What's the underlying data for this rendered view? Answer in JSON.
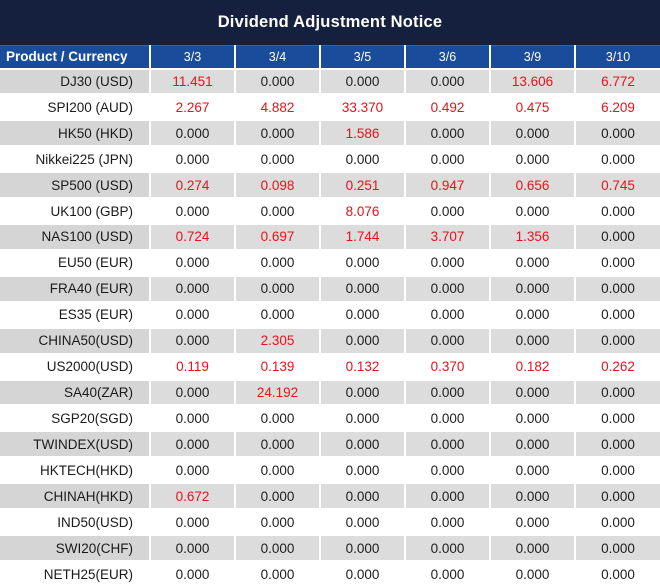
{
  "title": "Dividend Adjustment Notice",
  "table": {
    "product_header": "Product / Currency",
    "date_columns": [
      "3/3",
      "3/4",
      "3/5",
      "3/6",
      "3/9",
      "3/10"
    ],
    "rows": [
      {
        "product": "DJ30 (USD)",
        "values": [
          "11.451",
          "0.000",
          "0.000",
          "0.000",
          "13.606",
          "6.772"
        ],
        "red": [
          true,
          false,
          false,
          false,
          true,
          true
        ]
      },
      {
        "product": "SPI200 (AUD)",
        "values": [
          "2.267",
          "4.882",
          "33.370",
          "0.492",
          "0.475",
          "6.209"
        ],
        "red": [
          true,
          true,
          true,
          true,
          true,
          true
        ]
      },
      {
        "product": "HK50 (HKD)",
        "values": [
          "0.000",
          "0.000",
          "1.586",
          "0.000",
          "0.000",
          "0.000"
        ],
        "red": [
          false,
          false,
          true,
          false,
          false,
          false
        ]
      },
      {
        "product": "Nikkei225 (JPN)",
        "values": [
          "0.000",
          "0.000",
          "0.000",
          "0.000",
          "0.000",
          "0.000"
        ],
        "red": [
          false,
          false,
          false,
          false,
          false,
          false
        ]
      },
      {
        "product": "SP500 (USD)",
        "values": [
          "0.274",
          "0.098",
          "0.251",
          "0.947",
          "0.656",
          "0.745"
        ],
        "red": [
          true,
          true,
          true,
          true,
          true,
          true
        ]
      },
      {
        "product": "UK100 (GBP)",
        "values": [
          "0.000",
          "0.000",
          "8.076",
          "0.000",
          "0.000",
          "0.000"
        ],
        "red": [
          false,
          false,
          true,
          false,
          false,
          false
        ]
      },
      {
        "product": "NAS100 (USD)",
        "values": [
          "0.724",
          "0.697",
          "1.744",
          "3.707",
          "1.356",
          "0.000"
        ],
        "red": [
          true,
          true,
          true,
          true,
          true,
          false
        ]
      },
      {
        "product": "EU50 (EUR)",
        "values": [
          "0.000",
          "0.000",
          "0.000",
          "0.000",
          "0.000",
          "0.000"
        ],
        "red": [
          false,
          false,
          false,
          false,
          false,
          false
        ]
      },
      {
        "product": "FRA40 (EUR)",
        "values": [
          "0.000",
          "0.000",
          "0.000",
          "0.000",
          "0.000",
          "0.000"
        ],
        "red": [
          false,
          false,
          false,
          false,
          false,
          false
        ]
      },
      {
        "product": "ES35 (EUR)",
        "values": [
          "0.000",
          "0.000",
          "0.000",
          "0.000",
          "0.000",
          "0.000"
        ],
        "red": [
          false,
          false,
          false,
          false,
          false,
          false
        ]
      },
      {
        "product": "CHINA50(USD)",
        "values": [
          "0.000",
          "2.305",
          "0.000",
          "0.000",
          "0.000",
          "0.000"
        ],
        "red": [
          false,
          true,
          false,
          false,
          false,
          false
        ]
      },
      {
        "product": "US2000(USD)",
        "values": [
          "0.119",
          "0.139",
          "0.132",
          "0.370",
          "0.182",
          "0.262"
        ],
        "red": [
          true,
          true,
          true,
          true,
          true,
          true
        ]
      },
      {
        "product": "SA40(ZAR)",
        "values": [
          "0.000",
          "24.192",
          "0.000",
          "0.000",
          "0.000",
          "0.000"
        ],
        "red": [
          false,
          true,
          false,
          false,
          false,
          false
        ]
      },
      {
        "product": "SGP20(SGD)",
        "values": [
          "0.000",
          "0.000",
          "0.000",
          "0.000",
          "0.000",
          "0.000"
        ],
        "red": [
          false,
          false,
          false,
          false,
          false,
          false
        ]
      },
      {
        "product": "TWINDEX(USD)",
        "values": [
          "0.000",
          "0.000",
          "0.000",
          "0.000",
          "0.000",
          "0.000"
        ],
        "red": [
          false,
          false,
          false,
          false,
          false,
          false
        ]
      },
      {
        "product": "HKTECH(HKD)",
        "values": [
          "0.000",
          "0.000",
          "0.000",
          "0.000",
          "0.000",
          "0.000"
        ],
        "red": [
          false,
          false,
          false,
          false,
          false,
          false
        ]
      },
      {
        "product": "CHINAH(HKD)",
        "values": [
          "0.672",
          "0.000",
          "0.000",
          "0.000",
          "0.000",
          "0.000"
        ],
        "red": [
          true,
          false,
          false,
          false,
          false,
          false
        ]
      },
      {
        "product": "IND50(USD)",
        "values": [
          "0.000",
          "0.000",
          "0.000",
          "0.000",
          "0.000",
          "0.000"
        ],
        "red": [
          false,
          false,
          false,
          false,
          false,
          false
        ]
      },
      {
        "product": "SWI20(CHF)",
        "values": [
          "0.000",
          "0.000",
          "0.000",
          "0.000",
          "0.000",
          "0.000"
        ],
        "red": [
          false,
          false,
          false,
          false,
          false,
          false
        ]
      },
      {
        "product": "NETH25(EUR)",
        "values": [
          "0.000",
          "0.000",
          "0.000",
          "0.000",
          "0.000",
          "0.000"
        ],
        "red": [
          false,
          false,
          false,
          false,
          false,
          false
        ]
      }
    ]
  },
  "colors": {
    "title_bg": "#14203d",
    "header_bg": "#1a4c9c",
    "row_alt_bg": "#dcdcdc",
    "row_alt_product_bg": "#d5d5d5",
    "value_highlight": "#e8121a",
    "value_default": "#1d1d1d",
    "header_text": "#ffffff",
    "grid_line": "#ffffff"
  }
}
